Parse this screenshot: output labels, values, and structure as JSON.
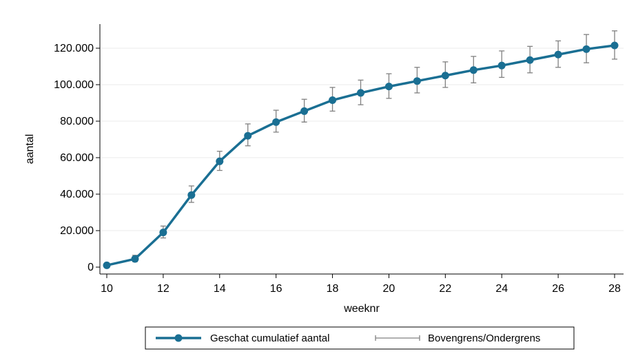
{
  "chart_data": {
    "type": "line",
    "xlabel": "weeknr",
    "ylabel": "aantal",
    "xlim": [
      10,
      28
    ],
    "ylim": [
      0,
      130000
    ],
    "x_ticks": [
      10,
      12,
      14,
      16,
      18,
      20,
      22,
      24,
      26,
      28
    ],
    "x_tick_labels": [
      "10",
      "12",
      "14",
      "16",
      "18",
      "20",
      "22",
      "24",
      "26",
      "28"
    ],
    "y_ticks": [
      0,
      20000,
      40000,
      60000,
      80000,
      100000,
      120000
    ],
    "y_tick_labels": [
      "0",
      "20.000",
      "40.000",
      "60.000",
      "80.000",
      "100.000",
      "120.000"
    ],
    "grid": true,
    "legend_position": "bottom",
    "colors": {
      "series": "#1a6f93",
      "errorbar": "#808080",
      "grid": "#ebebeb",
      "axis": "#000000"
    },
    "x": [
      10,
      11,
      12,
      13,
      14,
      15,
      16,
      17,
      18,
      19,
      20,
      21,
      22,
      23,
      24,
      25,
      26,
      27,
      28
    ],
    "series": [
      {
        "name": "Geschat cumulatief aantal",
        "values": [
          1000,
          4500,
          19000,
          39500,
          58000,
          72000,
          79500,
          85500,
          91500,
          95500,
          99000,
          102000,
          105000,
          108000,
          110500,
          113500,
          116500,
          119500,
          121500
        ]
      },
      {
        "name": "Bovengrens/Ondergrens",
        "upper": [
          1500,
          6500,
          22500,
          44500,
          63500,
          78500,
          86000,
          92000,
          98500,
          102500,
          106000,
          109500,
          112500,
          115500,
          118500,
          121000,
          124000,
          127500,
          129500
        ],
        "lower": [
          500,
          3000,
          16000,
          35500,
          53000,
          66500,
          74000,
          79500,
          85500,
          89000,
          92500,
          95500,
          98500,
          101000,
          104000,
          106500,
          109500,
          112000,
          114000
        ]
      }
    ]
  }
}
